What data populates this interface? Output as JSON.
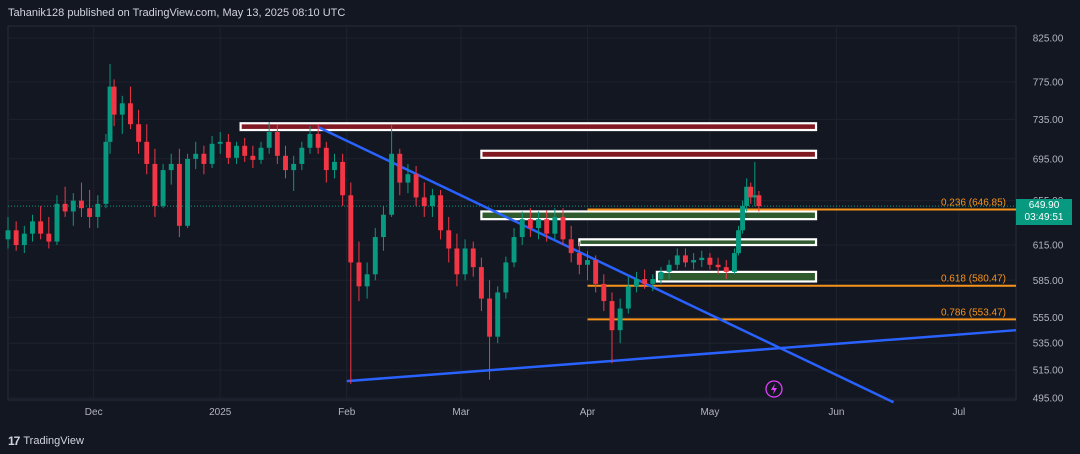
{
  "header": {
    "publish_line": "Tahanik128 published on TradingView.com, May 13, 2025 08:10 UTC"
  },
  "footer": {
    "brand": "TradingView",
    "logo_glyph": "17"
  },
  "colors": {
    "background": "#131722",
    "grid": "#1e222d",
    "bull": "#089981",
    "bear": "#f23645",
    "trendline": "#2962ff",
    "fib": "#f7931a",
    "supply_zone": "#801922",
    "demand_zone": "#2e5a2e",
    "zone_border": "#ffffff"
  },
  "price_tag": {
    "price": "649.90",
    "countdown": "03:49:51"
  },
  "chart_data": {
    "type": "candlestick",
    "symbol_interval": "",
    "y_axis": {
      "ticks": [
        "825.00",
        "775.00",
        "735.00",
        "695.00",
        "655.00",
        "615.00",
        "585.00",
        "555.00",
        "535.00",
        "515.00",
        "495.00"
      ],
      "tick_values": [
        825,
        775,
        735,
        695,
        655,
        615,
        585,
        555,
        535,
        515,
        495
      ],
      "scale": "log",
      "range": [
        495,
        825
      ]
    },
    "x_axis": {
      "ticks": [
        "Dec",
        "2025",
        "Feb",
        "Mar",
        "Apr",
        "May",
        "Jun",
        "Jul"
      ],
      "tick_dates": [
        "2024-12-01",
        "2025-01-01",
        "2025-02-01",
        "2025-03-01",
        "2025-04-01",
        "2025-05-01",
        "2025-06-01",
        "2025-07-01"
      ],
      "range": [
        "2024-11-10",
        "2025-07-15"
      ]
    },
    "fib_levels": [
      {
        "label": "0.236 (646.85)",
        "price": 646.85,
        "from": "2025-04-01",
        "to": "2025-07-15"
      },
      {
        "label": "0.618 (580.47)",
        "price": 580.47,
        "from": "2025-04-01",
        "to": "2025-07-15"
      },
      {
        "label": "0.786 (553.47)",
        "price": 553.47,
        "from": "2025-04-01",
        "to": "2025-07-15"
      }
    ],
    "zones": [
      {
        "kind": "supply",
        "top": 731,
        "bottom": 724,
        "from": "2025-01-06",
        "to": "2025-05-27"
      },
      {
        "kind": "supply",
        "top": 703,
        "bottom": 696,
        "from": "2025-03-06",
        "to": "2025-05-27"
      },
      {
        "kind": "demand",
        "top": 645,
        "bottom": 638,
        "from": "2025-03-06",
        "to": "2025-05-27"
      },
      {
        "kind": "demand",
        "top": 620,
        "bottom": 615,
        "from": "2025-03-30",
        "to": "2025-05-27"
      },
      {
        "kind": "demand",
        "top": 592,
        "bottom": 584,
        "from": "2025-04-18",
        "to": "2025-05-27"
      }
    ],
    "trendlines": [
      {
        "from": [
          "2025-01-25",
          727
        ],
        "to": [
          "2025-06-15",
          492
        ]
      },
      {
        "from": [
          "2025-02-01",
          507
        ],
        "to": [
          "2025-07-15",
          545
        ]
      }
    ],
    "current_price": 649.9,
    "ohlc": [
      [
        "2024-11-10",
        620,
        640,
        612,
        628
      ],
      [
        "2024-11-12",
        628,
        636,
        610,
        615
      ],
      [
        "2024-11-14",
        615,
        632,
        608,
        625
      ],
      [
        "2024-11-16",
        625,
        642,
        618,
        636
      ],
      [
        "2024-11-18",
        636,
        650,
        620,
        625
      ],
      [
        "2024-11-20",
        625,
        640,
        612,
        618
      ],
      [
        "2024-11-22",
        618,
        660,
        615,
        652
      ],
      [
        "2024-11-24",
        652,
        668,
        640,
        645
      ],
      [
        "2024-11-26",
        645,
        662,
        632,
        655
      ],
      [
        "2024-11-28",
        655,
        672,
        640,
        648
      ],
      [
        "2024-11-30",
        648,
        665,
        630,
        640
      ],
      [
        "2024-12-02",
        640,
        660,
        630,
        652
      ],
      [
        "2024-12-04",
        652,
        720,
        648,
        712
      ],
      [
        "2024-12-05",
        712,
        795,
        700,
        770
      ],
      [
        "2024-12-06",
        770,
        778,
        728,
        740
      ],
      [
        "2024-12-08",
        740,
        760,
        720,
        752
      ],
      [
        "2024-12-10",
        752,
        770,
        725,
        730
      ],
      [
        "2024-12-12",
        730,
        745,
        700,
        712
      ],
      [
        "2024-12-14",
        712,
        730,
        680,
        690
      ],
      [
        "2024-12-16",
        690,
        705,
        640,
        650
      ],
      [
        "2024-12-18",
        650,
        690,
        648,
        684
      ],
      [
        "2024-12-20",
        684,
        700,
        670,
        690
      ],
      [
        "2024-12-22",
        690,
        705,
        622,
        632
      ],
      [
        "2024-12-24",
        632,
        700,
        630,
        695
      ],
      [
        "2024-12-26",
        695,
        712,
        685,
        700
      ],
      [
        "2024-12-28",
        700,
        708,
        680,
        690
      ],
      [
        "2024-12-30",
        690,
        718,
        686,
        710
      ],
      [
        "2025-01-01",
        710,
        722,
        700,
        712
      ],
      [
        "2025-01-03",
        712,
        720,
        690,
        696
      ],
      [
        "2025-01-05",
        696,
        712,
        690,
        708
      ],
      [
        "2025-01-07",
        708,
        716,
        692,
        698
      ],
      [
        "2025-01-09",
        698,
        708,
        686,
        694
      ],
      [
        "2025-01-11",
        694,
        712,
        690,
        706
      ],
      [
        "2025-01-13",
        706,
        732,
        700,
        722
      ],
      [
        "2025-01-15",
        722,
        730,
        690,
        698
      ],
      [
        "2025-01-17",
        698,
        708,
        676,
        684
      ],
      [
        "2025-01-19",
        684,
        698,
        664,
        690
      ],
      [
        "2025-01-21",
        690,
        712,
        684,
        706
      ],
      [
        "2025-01-23",
        706,
        728,
        700,
        720
      ],
      [
        "2025-01-25",
        720,
        730,
        700,
        706
      ],
      [
        "2025-01-27",
        706,
        712,
        672,
        684
      ],
      [
        "2025-01-29",
        684,
        700,
        676,
        692
      ],
      [
        "2025-01-31",
        692,
        700,
        650,
        660
      ],
      [
        "2025-02-02",
        660,
        672,
        505,
        600
      ],
      [
        "2025-02-04",
        600,
        618,
        568,
        580
      ],
      [
        "2025-02-06",
        580,
        600,
        570,
        590
      ],
      [
        "2025-02-08",
        590,
        630,
        585,
        622
      ],
      [
        "2025-02-10",
        622,
        650,
        610,
        642
      ],
      [
        "2025-02-12",
        642,
        730,
        640,
        700
      ],
      [
        "2025-02-14",
        700,
        705,
        660,
        672
      ],
      [
        "2025-02-16",
        672,
        690,
        662,
        680
      ],
      [
        "2025-02-18",
        680,
        688,
        650,
        658
      ],
      [
        "2025-02-20",
        658,
        672,
        640,
        650
      ],
      [
        "2025-02-22",
        650,
        666,
        640,
        660
      ],
      [
        "2025-02-24",
        660,
        665,
        620,
        628
      ],
      [
        "2025-02-26",
        628,
        640,
        600,
        612
      ],
      [
        "2025-02-28",
        612,
        625,
        580,
        590
      ],
      [
        "2025-03-02",
        590,
        620,
        585,
        612
      ],
      [
        "2025-03-04",
        612,
        618,
        588,
        596
      ],
      [
        "2025-03-06",
        596,
        604,
        560,
        570
      ],
      [
        "2025-03-08",
        570,
        585,
        508,
        540
      ],
      [
        "2025-03-10",
        540,
        580,
        535,
        575
      ],
      [
        "2025-03-12",
        575,
        605,
        570,
        600
      ],
      [
        "2025-03-14",
        600,
        630,
        596,
        622
      ],
      [
        "2025-03-16",
        622,
        645,
        615,
        638
      ],
      [
        "2025-03-18",
        638,
        648,
        622,
        630
      ],
      [
        "2025-03-20",
        630,
        645,
        620,
        638
      ],
      [
        "2025-03-22",
        638,
        646,
        618,
        625
      ],
      [
        "2025-03-24",
        625,
        648,
        620,
        640
      ],
      [
        "2025-03-26",
        640,
        648,
        615,
        620
      ],
      [
        "2025-03-28",
        620,
        632,
        600,
        608
      ],
      [
        "2025-03-30",
        608,
        618,
        590,
        598
      ],
      [
        "2025-04-01",
        598,
        610,
        585,
        602
      ],
      [
        "2025-04-03",
        602,
        606,
        575,
        582
      ],
      [
        "2025-04-05",
        582,
        590,
        560,
        568
      ],
      [
        "2025-04-07",
        568,
        575,
        520,
        545
      ],
      [
        "2025-04-09",
        545,
        570,
        535,
        562
      ],
      [
        "2025-04-11",
        562,
        588,
        558,
        580
      ],
      [
        "2025-04-13",
        580,
        592,
        575,
        586
      ],
      [
        "2025-04-15",
        586,
        594,
        578,
        582
      ],
      [
        "2025-04-17",
        582,
        590,
        576,
        586
      ],
      [
        "2025-04-19",
        586,
        596,
        582,
        592
      ],
      [
        "2025-04-21",
        592,
        602,
        586,
        598
      ],
      [
        "2025-04-23",
        598,
        612,
        594,
        606
      ],
      [
        "2025-04-25",
        606,
        612,
        596,
        600
      ],
      [
        "2025-04-27",
        600,
        608,
        594,
        602
      ],
      [
        "2025-04-29",
        602,
        610,
        596,
        604
      ],
      [
        "2025-05-01",
        604,
        608,
        594,
        598
      ],
      [
        "2025-05-03",
        598,
        604,
        590,
        596
      ],
      [
        "2025-05-05",
        596,
        602,
        586,
        592
      ],
      [
        "2025-05-07",
        592,
        612,
        590,
        608
      ],
      [
        "2025-05-08",
        608,
        632,
        606,
        628
      ],
      [
        "2025-05-09",
        628,
        655,
        625,
        650
      ],
      [
        "2025-05-10",
        650,
        676,
        645,
        668
      ],
      [
        "2025-05-11",
        668,
        672,
        652,
        658
      ],
      [
        "2025-05-12",
        658,
        692,
        650,
        660
      ],
      [
        "2025-05-13",
        660,
        664,
        645,
        649.9
      ]
    ]
  }
}
